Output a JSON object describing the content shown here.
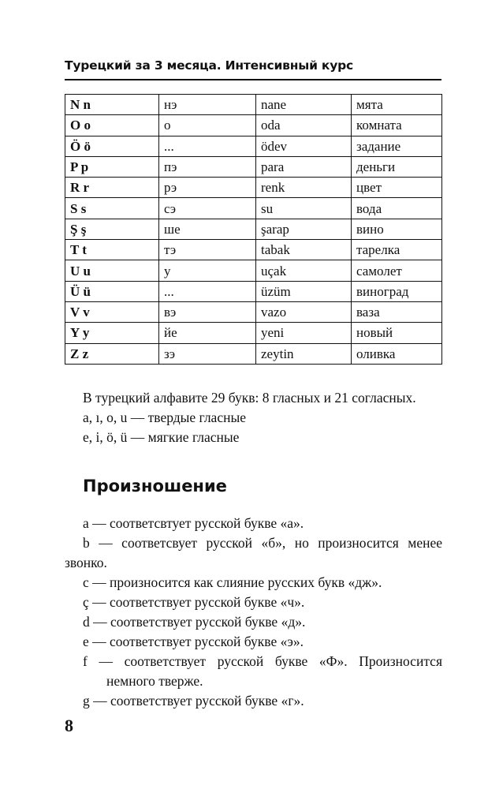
{
  "header": "Турецкий за 3 месяца. Интенсивный курс",
  "table": [
    [
      "N n",
      "нэ",
      "nane",
      "мята"
    ],
    [
      "O o",
      "o",
      "oda",
      "комната"
    ],
    [
      "Ö ö",
      "...",
      "ödev",
      "задание"
    ],
    [
      "P p",
      "пэ",
      "para",
      "деньги"
    ],
    [
      "R r",
      "рэ",
      "renk",
      "цвет"
    ],
    [
      "S s",
      "сэ",
      "su",
      "вода"
    ],
    [
      "Ş ş",
      "ше",
      "şarap",
      "вино"
    ],
    [
      "T t",
      "тэ",
      "tabak",
      "тарелка"
    ],
    [
      "U u",
      "у",
      "uçak",
      "самолет"
    ],
    [
      "Ü ü",
      "...",
      "üzüm",
      "виноград"
    ],
    [
      "V v",
      "вэ",
      "vazo",
      "ваза"
    ],
    [
      "Y y",
      "йе",
      "yeni",
      "новый"
    ],
    [
      "Z z",
      "зэ",
      "zeytin",
      "оливка"
    ]
  ],
  "intro": [
    "В турецкий алфавите 29 букв: 8 гласных и 21 согласных.",
    "a, ı, o, u — твердые гласные",
    "e, i, ö, ü — мягкие гласные"
  ],
  "heading": "Произношение",
  "pron": {
    "a": "a — соответсвтует русской букве «а».",
    "b1": "b — соответсвует русской «б», но произносится менее",
    "b2": "звонко.",
    "c": "c — произносится как слияние русских букв «дж».",
    "cc": "ç — соответствует русской букве «ч».",
    "d": "d — соответствует русской букве «д».",
    "e": "e — соответствует русской букве «э».",
    "f1": "f — соответствует русской букве «Ф». Произносится",
    "f2": "немного тверже.",
    "g": "g — соответствует русской букве «г»."
  },
  "page_number": "8"
}
